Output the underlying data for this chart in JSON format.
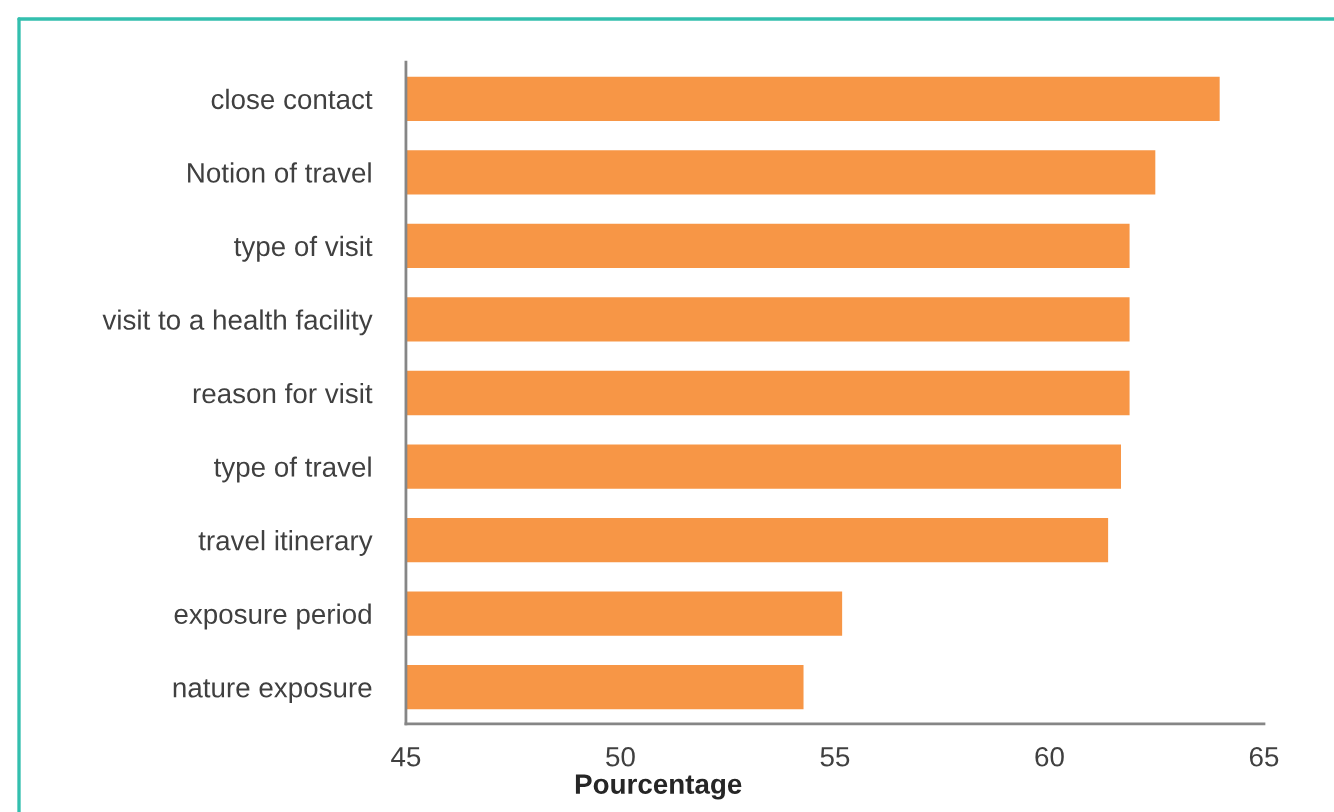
{
  "chart_data": {
    "type": "bar",
    "orientation": "horizontal",
    "categories": [
      "close contact",
      "Notion of travel",
      "type of visit",
      "visit to a health facility",
      "reason for visit",
      "type of travel",
      "travel itinerary",
      "exposure period",
      "nature exposure"
    ],
    "values": [
      64.0,
      62.5,
      61.9,
      61.9,
      61.9,
      61.7,
      61.4,
      55.2,
      54.3
    ],
    "color": "#f79646",
    "xlim": [
      45,
      65
    ],
    "xticks": [
      45,
      50,
      55,
      60,
      65
    ],
    "xlabel": "Pourcentage"
  }
}
